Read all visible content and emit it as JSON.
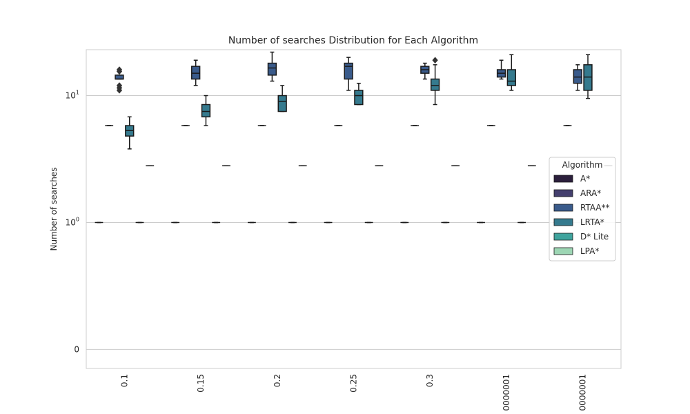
{
  "chart_data": {
    "type": "box",
    "title": "Number of searches Distribution for Each Algorithm",
    "xlabel": "",
    "ylabel": "Number of searches",
    "y_scale": "symlog",
    "ylim": [
      -0.15,
      23
    ],
    "y_ticks": [
      {
        "value": 0,
        "label": "0"
      },
      {
        "value": 1,
        "label": "10^0"
      },
      {
        "value": 10,
        "label": "10^1"
      }
    ],
    "grid": "horizontal",
    "categories": [
      "0.1",
      "0.15",
      "0.2",
      "0.25",
      "0.3",
      "0000001",
      "0000001"
    ],
    "legend": {
      "title": "Algorithm",
      "placement": "center-right"
    },
    "series": [
      {
        "name": "A*",
        "color": "#2b1f3c",
        "boxes": [
          {
            "min": 1,
            "q1": 1,
            "median": 1,
            "q3": 1,
            "max": 1,
            "outliers": []
          },
          {
            "min": 1,
            "q1": 1,
            "median": 1,
            "q3": 1,
            "max": 1,
            "outliers": []
          },
          {
            "min": 1,
            "q1": 1,
            "median": 1,
            "q3": 1,
            "max": 1,
            "outliers": []
          },
          {
            "min": 1,
            "q1": 1,
            "median": 1,
            "q3": 1,
            "max": 1,
            "outliers": []
          },
          {
            "min": 1,
            "q1": 1,
            "median": 1,
            "q3": 1,
            "max": 1,
            "outliers": []
          },
          {
            "min": 1,
            "q1": 1,
            "median": 1,
            "q3": 1,
            "max": 1,
            "outliers": []
          },
          {
            "min": 1,
            "q1": 1,
            "median": 1,
            "q3": 1,
            "max": 1,
            "outliers": []
          }
        ]
      },
      {
        "name": "ARA*",
        "color": "#443f6e",
        "boxes": [
          {
            "min": 5.8,
            "q1": 5.8,
            "median": 5.8,
            "q3": 5.8,
            "max": 5.8,
            "outliers": []
          },
          {
            "min": 5.8,
            "q1": 5.8,
            "median": 5.8,
            "q3": 5.8,
            "max": 5.8,
            "outliers": []
          },
          {
            "min": 5.8,
            "q1": 5.8,
            "median": 5.8,
            "q3": 5.8,
            "max": 5.8,
            "outliers": []
          },
          {
            "min": 5.8,
            "q1": 5.8,
            "median": 5.8,
            "q3": 5.8,
            "max": 5.8,
            "outliers": []
          },
          {
            "min": 5.8,
            "q1": 5.8,
            "median": 5.8,
            "q3": 5.8,
            "max": 5.8,
            "outliers": []
          },
          {
            "min": 5.8,
            "q1": 5.8,
            "median": 5.8,
            "q3": 5.8,
            "max": 5.8,
            "outliers": []
          },
          {
            "min": 5.8,
            "q1": 5.8,
            "median": 5.8,
            "q3": 5.8,
            "max": 5.8,
            "outliers": []
          }
        ]
      },
      {
        "name": "RTAA**",
        "color": "#3a5b8b",
        "boxes": [
          {
            "min": 13.5,
            "q1": 13.5,
            "median": 13.5,
            "q3": 14.5,
            "max": 14.5,
            "outliers": [
              11,
              11.5,
              12,
              15.5,
              16
            ]
          },
          {
            "min": 12,
            "q1": 13.5,
            "median": 15,
            "q3": 17,
            "max": 19,
            "outliers": []
          },
          {
            "min": 13,
            "q1": 14.5,
            "median": 16.5,
            "q3": 18,
            "max": 22,
            "outliers": []
          },
          {
            "min": 11,
            "q1": 13.5,
            "median": 17,
            "q3": 18,
            "max": 20,
            "outliers": []
          },
          {
            "min": 13.5,
            "q1": 15,
            "median": 16,
            "q3": 17,
            "max": 18,
            "outliers": []
          },
          {
            "min": 13.5,
            "q1": 14,
            "median": 15,
            "q3": 16,
            "max": 19,
            "outliers": []
          },
          {
            "min": 11,
            "q1": 12.5,
            "median": 14,
            "q3": 16,
            "max": 17.5,
            "outliers": []
          }
        ]
      },
      {
        "name": "LRTA*",
        "color": "#357a8e",
        "boxes": [
          {
            "min": 3.8,
            "q1": 4.8,
            "median": 5.3,
            "q3": 5.8,
            "max": 6.8,
            "outliers": []
          },
          {
            "min": 5.8,
            "q1": 6.8,
            "median": 7.5,
            "q3": 8.5,
            "max": 10,
            "outliers": []
          },
          {
            "min": 7.5,
            "q1": 7.5,
            "median": 9,
            "q3": 10,
            "max": 12,
            "outliers": []
          },
          {
            "min": 8.5,
            "q1": 8.5,
            "median": 10,
            "q3": 11,
            "max": 12.5,
            "outliers": []
          },
          {
            "min": 8.5,
            "q1": 11,
            "median": 12,
            "q3": 13.5,
            "max": 17.5,
            "outliers": [
              19
            ]
          },
          {
            "min": 11,
            "q1": 12,
            "median": 13,
            "q3": 16,
            "max": 21,
            "outliers": []
          },
          {
            "min": 9.5,
            "q1": 11,
            "median": 14,
            "q3": 17.5,
            "max": 21,
            "outliers": []
          }
        ]
      },
      {
        "name": "D* Lite",
        "color": "#3fa39d",
        "boxes": [
          {
            "min": 1,
            "q1": 1,
            "median": 1,
            "q3": 1,
            "max": 1,
            "outliers": []
          },
          {
            "min": 1,
            "q1": 1,
            "median": 1,
            "q3": 1,
            "max": 1,
            "outliers": []
          },
          {
            "min": 1,
            "q1": 1,
            "median": 1,
            "q3": 1,
            "max": 1,
            "outliers": []
          },
          {
            "min": 1,
            "q1": 1,
            "median": 1,
            "q3": 1,
            "max": 1,
            "outliers": []
          },
          {
            "min": 1,
            "q1": 1,
            "median": 1,
            "q3": 1,
            "max": 1,
            "outliers": []
          },
          {
            "min": 1,
            "q1": 1,
            "median": 1,
            "q3": 1,
            "max": 1,
            "outliers": []
          },
          {
            "min": 1,
            "q1": 1,
            "median": 1,
            "q3": 1,
            "max": 1,
            "outliers": []
          }
        ]
      },
      {
        "name": "LPA*",
        "color": "#9dd6b4",
        "boxes": [
          {
            "min": 2.8,
            "q1": 2.8,
            "median": 2.8,
            "q3": 2.8,
            "max": 2.8,
            "outliers": []
          },
          {
            "min": 2.8,
            "q1": 2.8,
            "median": 2.8,
            "q3": 2.8,
            "max": 2.8,
            "outliers": []
          },
          {
            "min": 2.8,
            "q1": 2.8,
            "median": 2.8,
            "q3": 2.8,
            "max": 2.8,
            "outliers": []
          },
          {
            "min": 2.8,
            "q1": 2.8,
            "median": 2.8,
            "q3": 2.8,
            "max": 2.8,
            "outliers": []
          },
          {
            "min": 2.8,
            "q1": 2.8,
            "median": 2.8,
            "q3": 2.8,
            "max": 2.8,
            "outliers": []
          },
          {
            "min": 2.8,
            "q1": 2.8,
            "median": 2.8,
            "q3": 2.8,
            "max": 2.8,
            "outliers": []
          },
          {
            "min": 2.8,
            "q1": 2.8,
            "median": 2.8,
            "q3": 2.8,
            "max": 2.8,
            "outliers": []
          }
        ]
      }
    ]
  }
}
